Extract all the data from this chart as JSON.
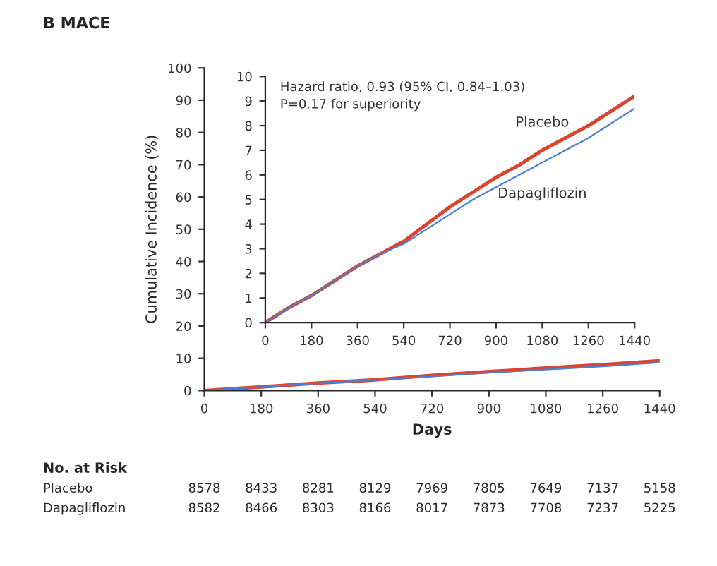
{
  "chart_data": [
    {
      "type": "line",
      "title": "B MACE",
      "xlabel": "Days",
      "ylabel": "Cumulative Incidence (%)",
      "x": [
        0,
        90,
        180,
        270,
        360,
        450,
        540,
        630,
        720,
        810,
        900,
        990,
        1080,
        1170,
        1260,
        1350,
        1440
      ],
      "series": [
        {
          "color": "#d9452f",
          "values": [
            0,
            0.6,
            1.1,
            1.7,
            2.3,
            2.8,
            3.3,
            4.0,
            4.7,
            5.3,
            5.9,
            6.4,
            7.0,
            7.5,
            8.0,
            8.6,
            9.2
          ]
        },
        {
          "color": "#4a7fd4",
          "values": [
            0,
            0.6,
            1.1,
            1.7,
            2.3,
            2.8,
            3.2,
            3.8,
            4.4,
            5.0,
            5.5,
            6.0,
            6.5,
            7.0,
            7.5,
            8.1,
            8.7
          ]
        }
      ],
      "xlim": [
        0,
        1440
      ],
      "xticks": [
        0,
        180,
        360,
        540,
        720,
        900,
        1080,
        1260,
        1440
      ],
      "ylim": [
        0,
        100
      ],
      "yticks": [
        0,
        10,
        20,
        30,
        40,
        50,
        60,
        70,
        80,
        90,
        100
      ],
      "grid": false,
      "annotations": [
        "No. at Risk",
        "Placebo 8578 8433 8281 8129 7969 7805 7649 7137 5158",
        "Dapagliflozin 8582 8466 8303 8166 8017 7873 7708 7237 5225"
      ]
    },
    {
      "type": "line",
      "x": [
        0,
        90,
        180,
        270,
        360,
        450,
        540,
        630,
        720,
        810,
        900,
        990,
        1080,
        1170,
        1260,
        1350,
        1440
      ],
      "series": [
        {
          "name": "Placebo",
          "color": "#d9452f",
          "values": [
            0,
            0.6,
            1.1,
            1.7,
            2.3,
            2.8,
            3.3,
            4.0,
            4.7,
            5.3,
            5.9,
            6.4,
            7.0,
            7.5,
            8.0,
            8.6,
            9.2
          ]
        },
        {
          "name": "Dapagliflozin",
          "color": "#4a7fd4",
          "values": [
            0,
            0.6,
            1.1,
            1.7,
            2.3,
            2.8,
            3.2,
            3.8,
            4.4,
            5.0,
            5.5,
            6.0,
            6.5,
            7.0,
            7.5,
            8.1,
            8.7
          ]
        }
      ],
      "xlim": [
        0,
        1440
      ],
      "xticks": [
        0,
        180,
        360,
        540,
        720,
        900,
        1080,
        1260,
        1440
      ],
      "ylim": [
        0,
        10
      ],
      "yticks": [
        0,
        1,
        2,
        3,
        4,
        5,
        6,
        7,
        8,
        9,
        10
      ],
      "grid": false,
      "annotations": [
        "Hazard ratio, 0.93 (95% CI, 0.84–1.03)",
        "P=0.17 for superiority"
      ]
    }
  ]
}
